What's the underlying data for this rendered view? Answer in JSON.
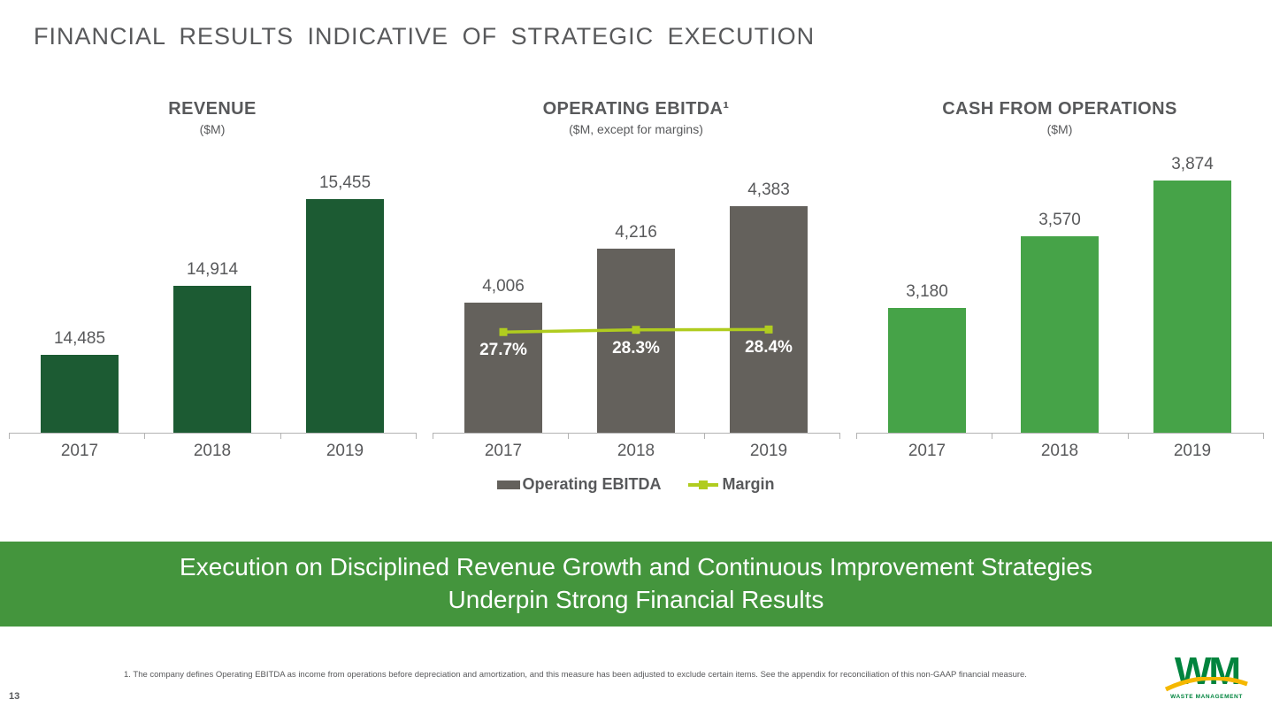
{
  "page": {
    "title": "FINANCIAL RESULTS INDICATIVE OF STRATEGIC EXECUTION",
    "page_number": "13",
    "footnote": "1. The company defines Operating EBITDA as income from operations before depreciation and amortization, and this measure has been adjusted to exclude certain items. See the appendix for reconciliation of this non-GAAP financial measure."
  },
  "banner": {
    "line1": "Execution on Disciplined Revenue Growth and Continuous Improvement Strategies",
    "line2": "Underpin Strong Financial Results"
  },
  "legend": {
    "ebitda_label": "Operating EBITDA",
    "margin_label": "Margin"
  },
  "logo": {
    "wm": "WM",
    "subtext": "WASTE MANAGEMENT"
  },
  "colors": {
    "revenue_bar": "#1c5b33",
    "ebitda_bar": "#64615c",
    "cash_bar": "#46a348",
    "margin_line": "#b0cc1f",
    "banner_bg": "#44953d",
    "text_gray": "#58595b",
    "logo_green": "#00843e",
    "logo_yellow": "#f5b800"
  },
  "chart_data": [
    {
      "type": "bar",
      "title": "REVENUE",
      "subtitle": "($M)",
      "categories": [
        "2017",
        "2018",
        "2019"
      ],
      "values": [
        14485,
        14914,
        15455
      ],
      "value_labels": [
        "14,485",
        "14,914",
        "15,455"
      ],
      "bar_color": "#1c5b33",
      "ylim": [
        14000,
        15600
      ],
      "grid": false,
      "legend_position": "none"
    },
    {
      "type": "bar-line",
      "title": "OPERATING EBITDA¹",
      "subtitle": "($M, except for margins)",
      "categories": [
        "2017",
        "2018",
        "2019"
      ],
      "series": [
        {
          "name": "Operating EBITDA",
          "type": "bar",
          "values": [
            4006,
            4216,
            4383
          ],
          "value_labels": [
            "4,006",
            "4,216",
            "4,383"
          ],
          "color": "#64615c"
        },
        {
          "name": "Margin",
          "type": "line",
          "values": [
            27.7,
            28.3,
            28.4
          ],
          "value_labels": [
            "27.7%",
            "28.3%",
            "28.4%"
          ],
          "color": "#b0cc1f",
          "ylim": [
            0,
            70
          ]
        }
      ],
      "ylim": [
        3500,
        4500
      ],
      "grid": false,
      "legend_position": "bottom"
    },
    {
      "type": "bar",
      "title": "CASH FROM OPERATIONS",
      "subtitle": "($M)",
      "categories": [
        "2017",
        "2018",
        "2019"
      ],
      "values": [
        3180,
        3570,
        3874
      ],
      "value_labels": [
        "3,180",
        "3,570",
        "3,874"
      ],
      "bar_color": "#46a348",
      "ylim": [
        2500,
        3900
      ],
      "grid": false,
      "legend_position": "none"
    }
  ]
}
